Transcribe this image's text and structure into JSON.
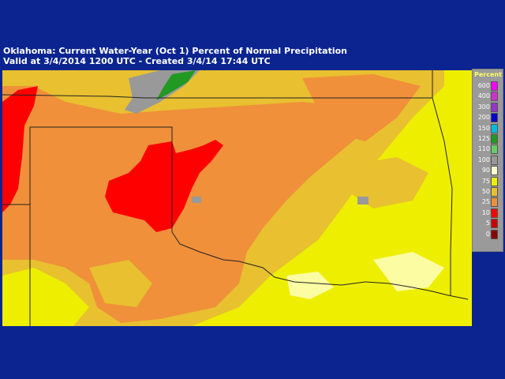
{
  "title": {
    "line1": "Oklahoma: Current Water-Year (Oct 1) Percent of Normal Precipitation",
    "line2": "Valid at 3/4/2014 1200 UTC - Created 3/4/14 17:44 UTC"
  },
  "legend": {
    "title": "Percent",
    "items": [
      {
        "label": "600",
        "color": "#ff00ff"
      },
      {
        "label": "400",
        "color": "#cc33cc"
      },
      {
        "label": "300",
        "color": "#9933cc"
      },
      {
        "label": "200",
        "color": "#0000cc"
      },
      {
        "label": "150",
        "color": "#00bbdd"
      },
      {
        "label": "125",
        "color": "#229922"
      },
      {
        "label": "110",
        "color": "#66cc66"
      },
      {
        "label": "100",
        "color": "#999999"
      },
      {
        "label": "90",
        "color": "#ffffcc"
      },
      {
        "label": "75",
        "color": "#eeee00"
      },
      {
        "label": "50",
        "color": "#e8c030"
      },
      {
        "label": "25",
        "color": "#f0903a"
      },
      {
        "label": "10",
        "color": "#ff0000"
      },
      {
        "label": "5",
        "color": "#cc0000"
      },
      {
        "label": "0",
        "color": "#880000"
      }
    ]
  },
  "colors": {
    "background": "#0b2490",
    "orange": "#f0903a",
    "light_orange": "#e8c030",
    "yellow": "#eeee00",
    "red": "#ff0000",
    "border": "#222222"
  }
}
